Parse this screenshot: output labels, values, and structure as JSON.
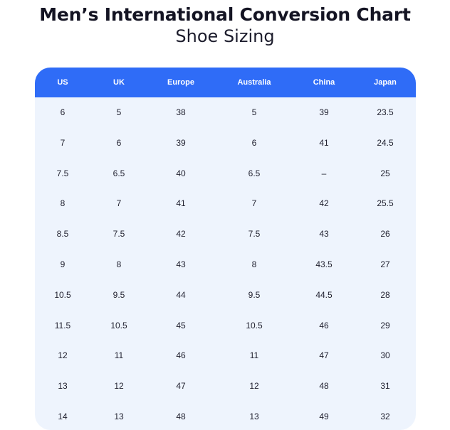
{
  "title": "Men’s International Conversion Chart",
  "subtitle": "Shoe Sizing",
  "table": {
    "headers": [
      "US",
      "UK",
      "Europe",
      "Australia",
      "China",
      "Japan"
    ],
    "rows": [
      [
        "6",
        "5",
        "38",
        "5",
        "39",
        "23.5"
      ],
      [
        "7",
        "6",
        "39",
        "6",
        "41",
        "24.5"
      ],
      [
        "7.5",
        "6.5",
        "40",
        "6.5",
        "–",
        "25"
      ],
      [
        "8",
        "7",
        "41",
        "7",
        "42",
        "25.5"
      ],
      [
        "8.5",
        "7.5",
        "42",
        "7.5",
        "43",
        "26"
      ],
      [
        "9",
        "8",
        "43",
        "8",
        "43.5",
        "27"
      ],
      [
        "10.5",
        "9.5",
        "44",
        "9.5",
        "44.5",
        "28"
      ],
      [
        "11.5",
        "10.5",
        "45",
        "10.5",
        "46",
        "29"
      ],
      [
        "12",
        "11",
        "46",
        "11",
        "47",
        "30"
      ],
      [
        "13",
        "12",
        "47",
        "12",
        "48",
        "31"
      ],
      [
        "14",
        "13",
        "48",
        "13",
        "49",
        "32"
      ]
    ]
  },
  "colors": {
    "header_background": "#2f6cf7",
    "table_background": "#eef4fd",
    "title_text": "#141423"
  }
}
